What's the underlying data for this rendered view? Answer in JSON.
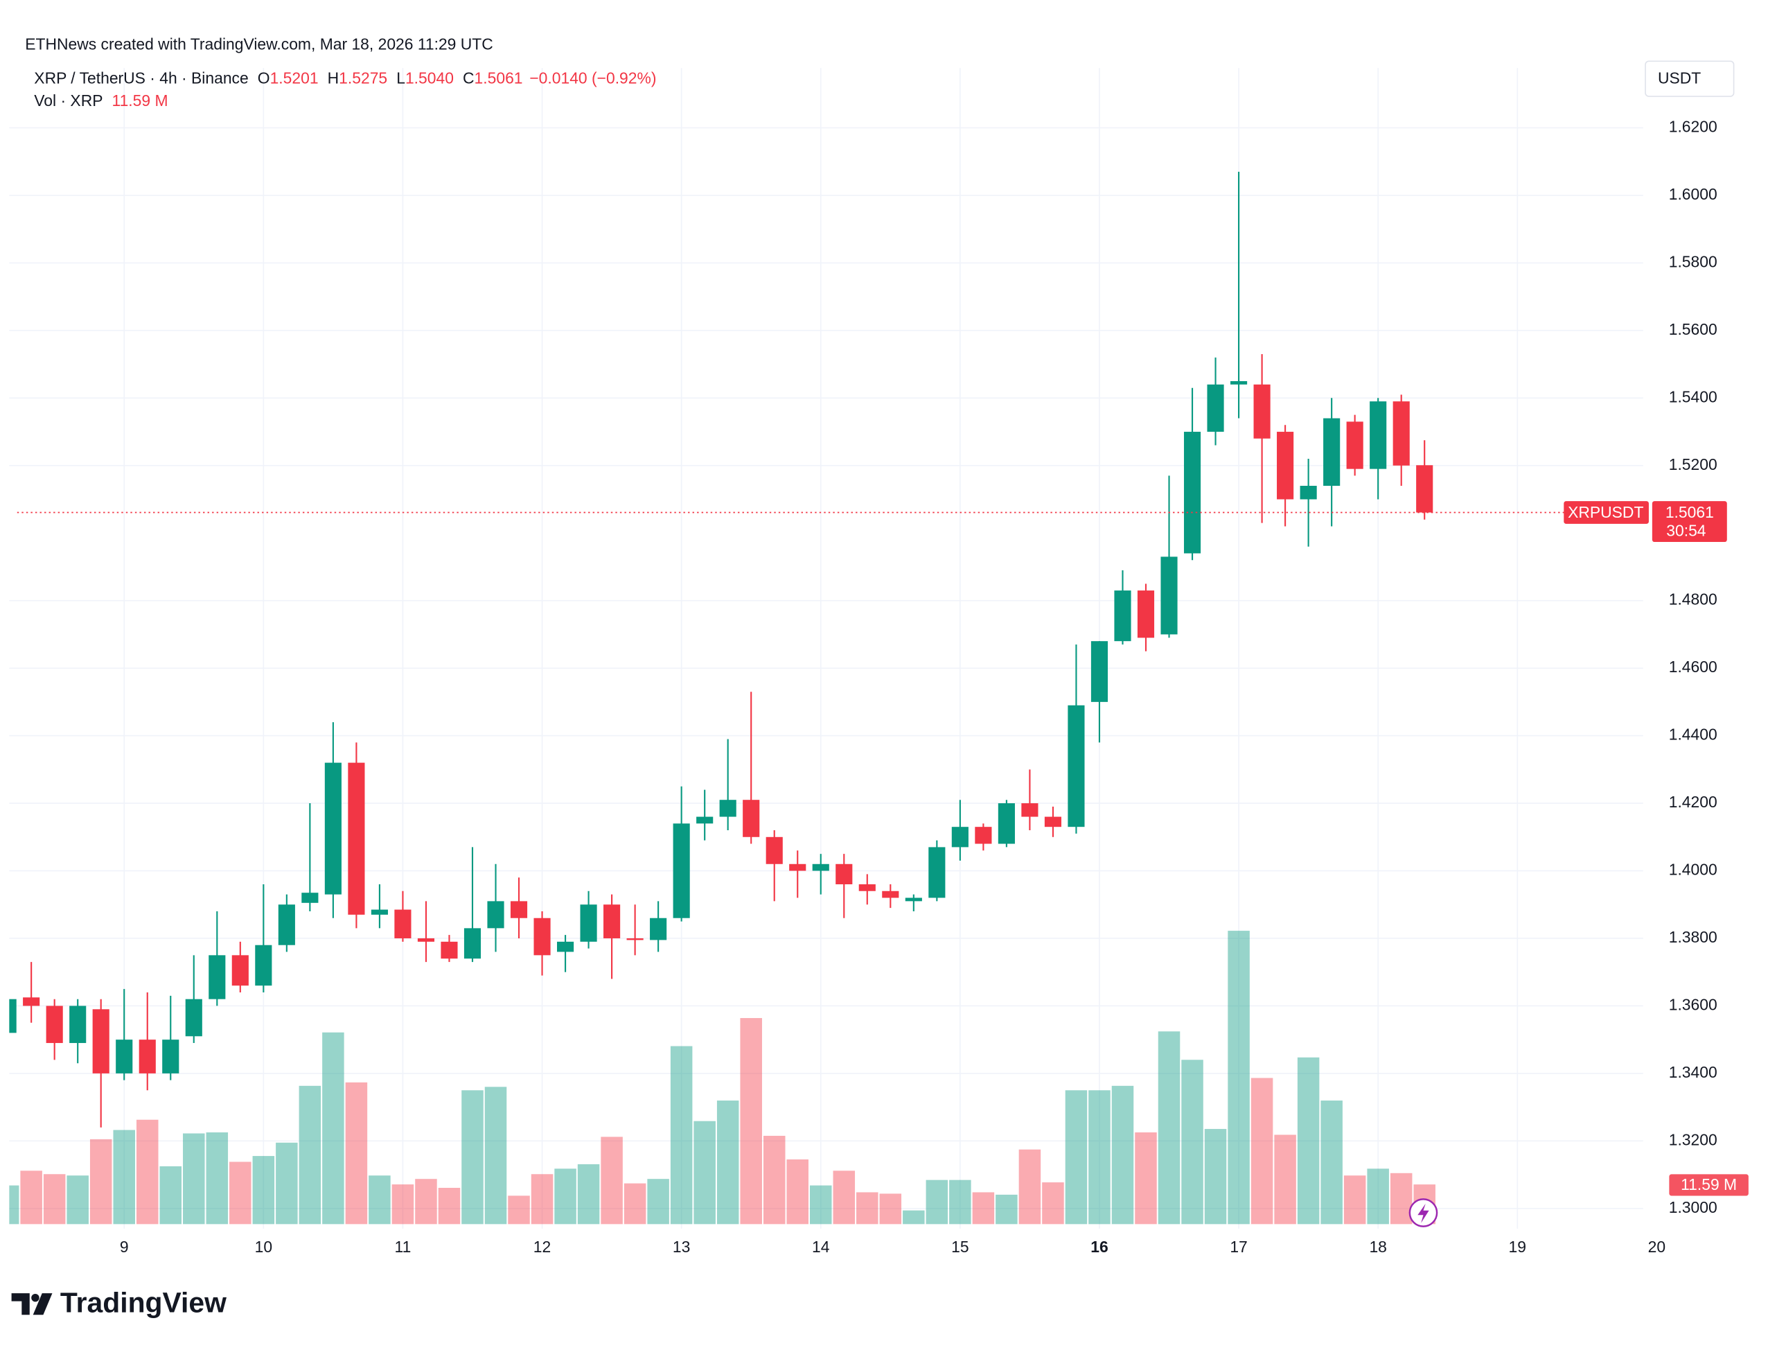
{
  "header": {
    "credit": "ETHNews created with TradingView.com, Mar 18, 2026 11:29 UTC",
    "symbol": "XRP / TetherUS · 4h · Binance",
    "ohlc": [
      {
        "key": "O",
        "value": "1.5201"
      },
      {
        "key": "H",
        "value": "1.5275"
      },
      {
        "key": "L",
        "value": "1.5040"
      },
      {
        "key": "C",
        "value": "1.5061"
      }
    ],
    "change": "−0.0140 (−0.92%)",
    "volume_title": "Vol · XRP",
    "volume_value": "11.59 M"
  },
  "chart_data": {
    "type": "candlestick",
    "x": [
      8.1667,
      8.3333,
      8.5,
      8.6667,
      8.8333,
      9,
      9.1667,
      9.3333,
      9.5,
      9.6667,
      9.8333,
      10,
      10.1667,
      10.3333,
      10.5,
      10.6667,
      10.8333,
      11,
      11.1667,
      11.3333,
      11.5,
      11.6667,
      11.8333,
      12,
      12.1667,
      12.3333,
      12.5,
      12.6667,
      12.8333,
      13,
      13.1667,
      13.3333,
      13.5,
      13.6667,
      13.8333,
      14,
      14.1667,
      14.3333,
      14.5,
      14.6667,
      14.8333,
      15,
      15.1667,
      15.3333,
      15.5,
      15.6667,
      15.8333,
      16,
      16.1667,
      16.3333,
      16.5,
      16.6667,
      16.8333,
      17,
      17.1667,
      17.3333,
      17.5,
      17.6667,
      17.8333,
      18,
      18.1667,
      18.3333
    ],
    "open": [
      1.352,
      1.3625,
      1.36,
      1.349,
      1.359,
      1.34,
      1.35,
      1.34,
      1.351,
      1.362,
      1.375,
      1.366,
      1.378,
      1.3905,
      1.393,
      1.432,
      1.387,
      1.3885,
      1.38,
      1.379,
      1.374,
      1.383,
      1.391,
      1.386,
      1.376,
      1.379,
      1.39,
      1.38,
      1.3795,
      1.386,
      1.414,
      1.416,
      1.421,
      1.41,
      1.402,
      1.4,
      1.402,
      1.396,
      1.394,
      1.391,
      1.392,
      1.407,
      1.413,
      1.408,
      1.42,
      1.416,
      1.413,
      1.45,
      1.468,
      1.483,
      1.47,
      1.494,
      1.53,
      1.544,
      1.544,
      1.53,
      1.51,
      1.514,
      1.533,
      1.519,
      1.539,
      1.5201
    ],
    "high": [
      1.364,
      1.373,
      1.362,
      1.362,
      1.362,
      1.365,
      1.364,
      1.363,
      1.375,
      1.388,
      1.379,
      1.396,
      1.393,
      1.42,
      1.444,
      1.438,
      1.396,
      1.394,
      1.391,
      1.381,
      1.407,
      1.402,
      1.398,
      1.388,
      1.381,
      1.394,
      1.393,
      1.39,
      1.391,
      1.425,
      1.424,
      1.439,
      1.453,
      1.412,
      1.406,
      1.405,
      1.405,
      1.399,
      1.396,
      1.393,
      1.409,
      1.421,
      1.414,
      1.421,
      1.43,
      1.419,
      1.467,
      1.468,
      1.489,
      1.485,
      1.517,
      1.543,
      1.552,
      1.607,
      1.553,
      1.532,
      1.522,
      1.54,
      1.535,
      1.54,
      1.541,
      1.5275
    ],
    "low": [
      1.348,
      1.355,
      1.344,
      1.343,
      1.324,
      1.338,
      1.335,
      1.338,
      1.349,
      1.36,
      1.364,
      1.364,
      1.376,
      1.388,
      1.386,
      1.383,
      1.383,
      1.379,
      1.373,
      1.373,
      1.373,
      1.376,
      1.38,
      1.369,
      1.37,
      1.377,
      1.368,
      1.375,
      1.376,
      1.385,
      1.409,
      1.412,
      1.408,
      1.391,
      1.392,
      1.393,
      1.386,
      1.39,
      1.389,
      1.388,
      1.391,
      1.403,
      1.406,
      1.407,
      1.412,
      1.41,
      1.411,
      1.438,
      1.467,
      1.465,
      1.469,
      1.492,
      1.526,
      1.534,
      1.503,
      1.502,
      1.496,
      1.502,
      1.517,
      1.51,
      1.514,
      1.504
    ],
    "close": [
      1.362,
      1.36,
      1.349,
      1.36,
      1.34,
      1.35,
      1.34,
      1.35,
      1.362,
      1.375,
      1.366,
      1.378,
      1.39,
      1.3935,
      1.432,
      1.387,
      1.3885,
      1.38,
      1.379,
      1.374,
      1.383,
      1.391,
      1.386,
      1.375,
      1.379,
      1.39,
      1.38,
      1.3795,
      1.386,
      1.414,
      1.416,
      1.421,
      1.41,
      1.402,
      1.4,
      1.402,
      1.396,
      1.394,
      1.392,
      1.392,
      1.407,
      1.413,
      1.408,
      1.42,
      1.416,
      1.413,
      1.449,
      1.468,
      1.483,
      1.469,
      1.493,
      1.53,
      1.544,
      1.545,
      1.528,
      1.51,
      1.514,
      1.534,
      1.519,
      1.539,
      1.52,
      1.5061
    ],
    "up_color": "#089981",
    "down_color": "#f23645",
    "volume": {
      "values": [
        11.3,
        15.6,
        14.6,
        14.2,
        24.8,
        27.5,
        30.5,
        16.9,
        26.5,
        26.8,
        18.2,
        19.9,
        23.8,
        40.4,
        56,
        41.4,
        14.2,
        11.6,
        13.2,
        10.6,
        39.1,
        40.1,
        8.3,
        14.6,
        16.2,
        17.5,
        25.5,
        11.9,
        13.2,
        52,
        30.1,
        36.1,
        60.2,
        25.8,
        18.9,
        11.3,
        15.6,
        9.3,
        8.9,
        4.0,
        12.9,
        12.9,
        9.3,
        8.6,
        21.8,
        12.2,
        39.1,
        39.1,
        40.4,
        26.8,
        56.3,
        48,
        27.8,
        85.7,
        42.7,
        26.1,
        48.7,
        36.1,
        14.2,
        16.2,
        14.9,
        11.59
      ],
      "ylim": [
        0,
        100
      ],
      "last_label": "11.59 M"
    },
    "ylim": [
      1.29,
      1.63
    ],
    "yticks": [
      {
        "value": 1.3,
        "label": "1.3000"
      },
      {
        "value": 1.32,
        "label": "1.3200"
      },
      {
        "value": 1.34,
        "label": "1.3400"
      },
      {
        "value": 1.36,
        "label": "1.3600"
      },
      {
        "value": 1.38,
        "label": "1.3800"
      },
      {
        "value": 1.4,
        "label": "1.4000"
      },
      {
        "value": 1.42,
        "label": "1.4200"
      },
      {
        "value": 1.44,
        "label": "1.4400"
      },
      {
        "value": 1.46,
        "label": "1.4600"
      },
      {
        "value": 1.48,
        "label": "1.4800"
      },
      {
        "value": 1.52,
        "label": "1.5200"
      },
      {
        "value": 1.54,
        "label": "1.5400"
      },
      {
        "value": 1.56,
        "label": "1.5600"
      },
      {
        "value": 1.58,
        "label": "1.5800"
      },
      {
        "value": 1.6,
        "label": "1.6000"
      },
      {
        "value": 1.62,
        "label": "1.6200"
      }
    ],
    "xlim": [
      8.11,
      20
    ],
    "xticks": [
      9,
      10,
      11,
      12,
      13,
      14,
      15,
      16,
      17,
      18,
      19,
      20
    ],
    "bold_xticks": [
      16
    ],
    "y_axis_title": "USDT",
    "last_price": {
      "symbol": "XRPUSDT",
      "label": "1.5061",
      "countdown": "30:54"
    },
    "grid": true
  },
  "branding": "TradingView"
}
